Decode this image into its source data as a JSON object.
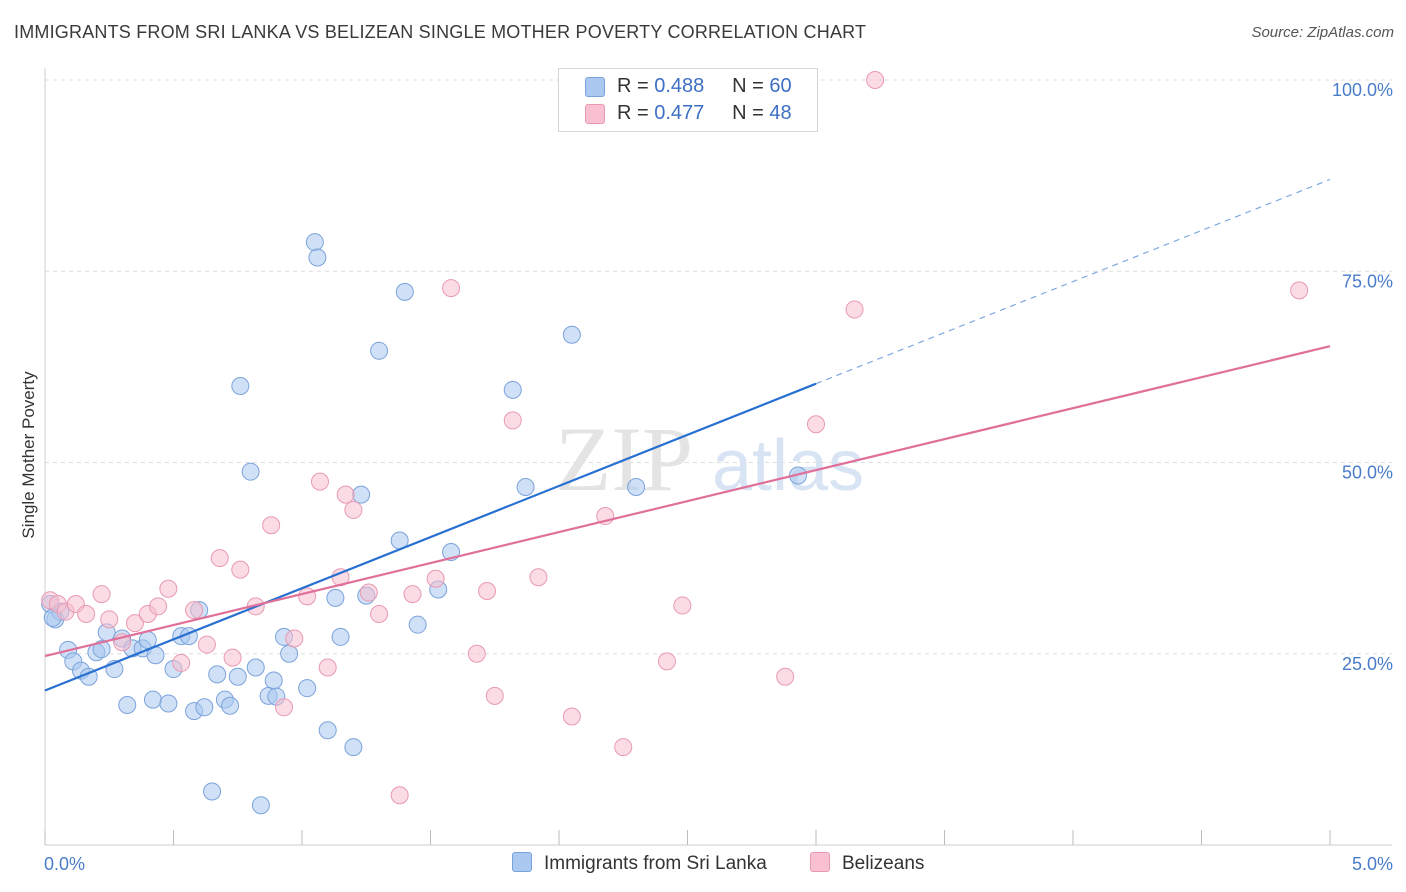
{
  "title": "IMMIGRANTS FROM SRI LANKA VS BELIZEAN SINGLE MOTHER POVERTY CORRELATION CHART",
  "source": "Source: ZipAtlas.com",
  "watermark": {
    "zip": "ZIP",
    "atlas": "atlas"
  },
  "legend": {
    "r_label": "R =",
    "n_label": "N =",
    "series1": {
      "r": "0.488",
      "n": "60"
    },
    "series2": {
      "r": "0.477",
      "n": "48"
    }
  },
  "chart_data": {
    "type": "scatter",
    "title": "IMMIGRANTS FROM SRI LANKA VS BELIZEAN SINGLE MOTHER POVERTY CORRELATION CHART",
    "xlabel": "",
    "ylabel": "Single Mother Poverty",
    "xlim": [
      0,
      5
    ],
    "ylim": [
      0,
      100
    ],
    "x_tick_labels": [
      "0.0%",
      "5.0%"
    ],
    "y_ticks": [
      25,
      50,
      75,
      100
    ],
    "y_tick_labels": [
      "25.0%",
      "50.0%",
      "75.0%",
      "100.0%"
    ],
    "grid": true,
    "series": [
      {
        "name": "Immigrants from Sri Lanka",
        "color": "#aac8f0",
        "stroke": "#7ba3db",
        "line_color": "#2870d0",
        "trend": {
          "x0": 0.0,
          "y0": 20.2,
          "x1": 3.0,
          "y1": 60.3,
          "dash_to_x": 5.0,
          "dash_to_y": 87.0
        },
        "points": [
          [
            0.02,
            31.5
          ],
          [
            0.04,
            29.5
          ],
          [
            0.06,
            30.5
          ],
          [
            0.09,
            25.5
          ],
          [
            0.11,
            24
          ],
          [
            0.14,
            22.8
          ],
          [
            0.17,
            22
          ],
          [
            0.2,
            25.2
          ],
          [
            0.22,
            25.6
          ],
          [
            0.24,
            27.8
          ],
          [
            0.27,
            23
          ],
          [
            0.3,
            27
          ],
          [
            0.32,
            18.3
          ],
          [
            0.34,
            25.7
          ],
          [
            0.38,
            25.7
          ],
          [
            0.4,
            26.8
          ],
          [
            0.42,
            19
          ],
          [
            0.43,
            24.8
          ],
          [
            0.48,
            18.5
          ],
          [
            0.5,
            23
          ],
          [
            0.53,
            27.3
          ],
          [
            0.56,
            27.3
          ],
          [
            0.58,
            17.5
          ],
          [
            0.6,
            30.7
          ],
          [
            0.62,
            18
          ],
          [
            0.65,
            7
          ],
          [
            0.67,
            22.3
          ],
          [
            0.7,
            19
          ],
          [
            0.72,
            18.2
          ],
          [
            0.75,
            22
          ],
          [
            0.76,
            60
          ],
          [
            0.8,
            48.8
          ],
          [
            0.82,
            23.2
          ],
          [
            0.84,
            5.2
          ],
          [
            0.87,
            19.5
          ],
          [
            0.89,
            21.5
          ],
          [
            0.9,
            19.4
          ],
          [
            0.93,
            27.2
          ],
          [
            0.95,
            25
          ],
          [
            1.02,
            20.5
          ],
          [
            1.05,
            78.8
          ],
          [
            1.06,
            76.8
          ],
          [
            1.1,
            15
          ],
          [
            1.13,
            32.3
          ],
          [
            1.15,
            27.2
          ],
          [
            1.2,
            12.8
          ],
          [
            1.23,
            45.8
          ],
          [
            1.25,
            32.6
          ],
          [
            1.3,
            64.6
          ],
          [
            1.38,
            39.8
          ],
          [
            1.4,
            72.3
          ],
          [
            1.45,
            28.8
          ],
          [
            1.53,
            33.4
          ],
          [
            1.58,
            38.3
          ],
          [
            1.82,
            59.5
          ],
          [
            1.87,
            46.8
          ],
          [
            2.05,
            66.7
          ],
          [
            2.3,
            46.8
          ],
          [
            2.93,
            48.3
          ],
          [
            0.03,
            29.7
          ]
        ]
      },
      {
        "name": "Belizeans",
        "color": "#f8c0d0",
        "stroke": "#e89ab2",
        "line_color": "#e0709a",
        "trend": {
          "x0": 0.0,
          "y0": 24.7,
          "x1": 5.0,
          "y1": 65.2
        },
        "points": [
          [
            0.02,
            32
          ],
          [
            0.05,
            31.5
          ],
          [
            0.08,
            30.5
          ],
          [
            0.12,
            31.5
          ],
          [
            0.16,
            30.2
          ],
          [
            0.22,
            32.8
          ],
          [
            0.25,
            29.5
          ],
          [
            0.3,
            26.5
          ],
          [
            0.35,
            29
          ],
          [
            0.4,
            30.2
          ],
          [
            0.44,
            31.2
          ],
          [
            0.48,
            33.5
          ],
          [
            0.53,
            23.8
          ],
          [
            0.58,
            30.7
          ],
          [
            0.63,
            26.2
          ],
          [
            0.68,
            37.5
          ],
          [
            0.73,
            24.5
          ],
          [
            0.76,
            36
          ],
          [
            0.82,
            31.2
          ],
          [
            0.88,
            41.8
          ],
          [
            0.93,
            18
          ],
          [
            0.97,
            27
          ],
          [
            1.02,
            32.5
          ],
          [
            1.07,
            47.5
          ],
          [
            1.1,
            23.2
          ],
          [
            1.15,
            35
          ],
          [
            1.17,
            45.8
          ],
          [
            1.2,
            43.8
          ],
          [
            1.26,
            33
          ],
          [
            1.3,
            30.2
          ],
          [
            1.38,
            6.5
          ],
          [
            1.43,
            32.8
          ],
          [
            1.52,
            34.8
          ],
          [
            1.58,
            72.8
          ],
          [
            1.68,
            25
          ],
          [
            1.72,
            33.2
          ],
          [
            1.75,
            19.5
          ],
          [
            1.82,
            55.5
          ],
          [
            1.92,
            35
          ],
          [
            2.05,
            16.8
          ],
          [
            2.18,
            43
          ],
          [
            2.25,
            12.8
          ],
          [
            2.42,
            24
          ],
          [
            2.48,
            31.3
          ],
          [
            2.88,
            22
          ],
          [
            3.0,
            55
          ],
          [
            3.15,
            70
          ],
          [
            4.88,
            72.5
          ]
        ],
        "extra_points": [
          [
            3.23,
            100
          ]
        ]
      }
    ]
  }
}
